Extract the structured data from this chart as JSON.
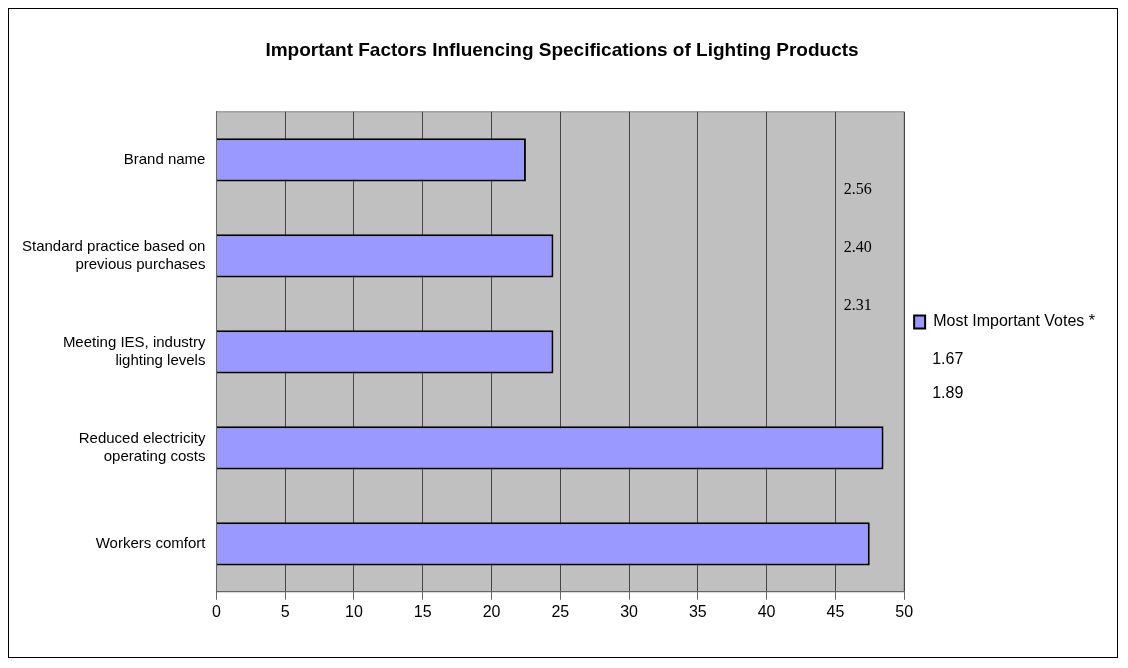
{
  "chart_data": {
    "type": "bar",
    "orientation": "horizontal",
    "title": "Important Factors Influencing Specifications of Lighting Products",
    "categories": [
      "Brand name",
      "Standard practice based on previous purchases",
      "Meeting IES, industry lighting levels",
      "Reduced electricity operating costs",
      "Workers comfort"
    ],
    "series": [
      {
        "name": "Most Important Votes *",
        "color": "#9999ff",
        "values": [
          22.5,
          24.5,
          24.5,
          48.5,
          47.5
        ]
      }
    ],
    "xlim": [
      0,
      50
    ],
    "xticks": [
      0,
      5,
      10,
      15,
      20,
      25,
      30,
      35,
      40,
      45,
      50
    ],
    "grid": "x",
    "legend": "right",
    "annotations": [
      "2.56",
      "2.40",
      "2.31",
      "1.67",
      "1.89"
    ]
  }
}
